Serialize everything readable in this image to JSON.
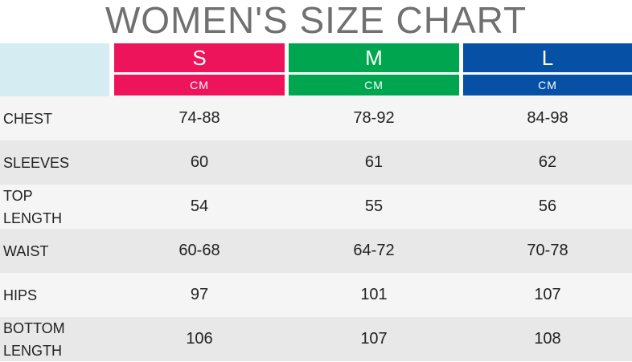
{
  "title": "WOMEN'S SIZE CHART",
  "colors": {
    "size_s": "#ee145b",
    "size_m": "#00a64f",
    "size_l": "#0651a6",
    "corner": "#d6ecf3",
    "title_text": "#707070"
  },
  "sizes": [
    {
      "label": "S",
      "unit": "CM"
    },
    {
      "label": "M",
      "unit": "CM"
    },
    {
      "label": "L",
      "unit": "CM"
    }
  ],
  "rows": [
    {
      "label": "CHEST",
      "s": "74-88",
      "m": "78-92",
      "l": "84-98"
    },
    {
      "label": "SLEEVES",
      "s": "60",
      "m": "61",
      "l": "62"
    },
    {
      "label": "TOP\nLENGTH",
      "s": "54",
      "m": "55",
      "l": "56"
    },
    {
      "label": "WAIST",
      "s": "60-68",
      "m": "64-72",
      "l": "70-78"
    },
    {
      "label": "HIPS",
      "s": "97",
      "m": "101",
      "l": "107"
    },
    {
      "label": "BOTTOM\nLENGTH",
      "s": "106",
      "m": "107",
      "l": "108"
    }
  ]
}
